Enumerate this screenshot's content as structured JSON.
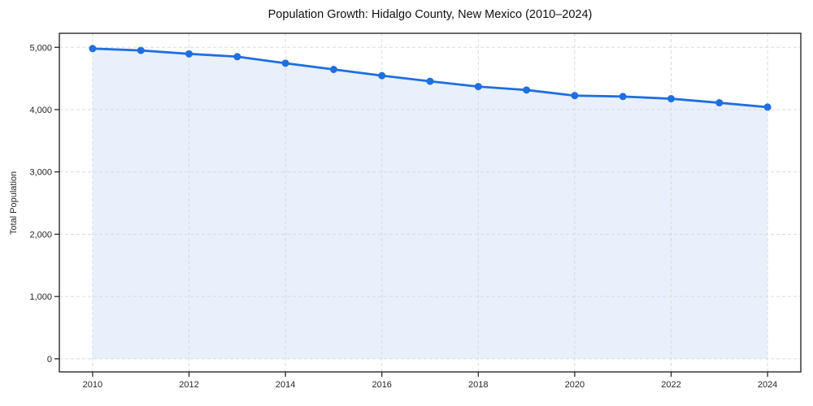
{
  "chart_data": {
    "type": "line",
    "title": "Population Growth: Hidalgo County, New Mexico (2010–2024)",
    "xlabel": "",
    "ylabel": "Total Population",
    "x": [
      2010,
      2011,
      2012,
      2013,
      2014,
      2015,
      2016,
      2017,
      2018,
      2019,
      2020,
      2021,
      2022,
      2023,
      2024
    ],
    "series": [
      {
        "name": "Total Population",
        "values": [
          4980,
          4950,
          4895,
          4850,
          4745,
          4645,
          4545,
          4455,
          4370,
          4315,
          4225,
          4210,
          4175,
          4110,
          4040
        ]
      }
    ],
    "x_ticks": [
      2010,
      2012,
      2014,
      2016,
      2018,
      2020,
      2022,
      2024
    ],
    "y_ticks": [
      0,
      1000,
      2000,
      3000,
      4000,
      5000
    ],
    "xlim": [
      2009.31,
      2024.69
    ],
    "ylim": [
      -210,
      5225
    ],
    "grid": true,
    "grid_style": "dashed",
    "legend": "none",
    "marker": "circle",
    "area_fill": true,
    "colors": {
      "line": "#1f6fe0",
      "marker": "#1f6fe0",
      "fill": "rgba(31,111,224,0.10)",
      "gridline": "#dadada",
      "spine": "#1a1a1a",
      "tick_text": "#262626",
      "title_text": "#111111",
      "background": "#ffffff"
    }
  }
}
